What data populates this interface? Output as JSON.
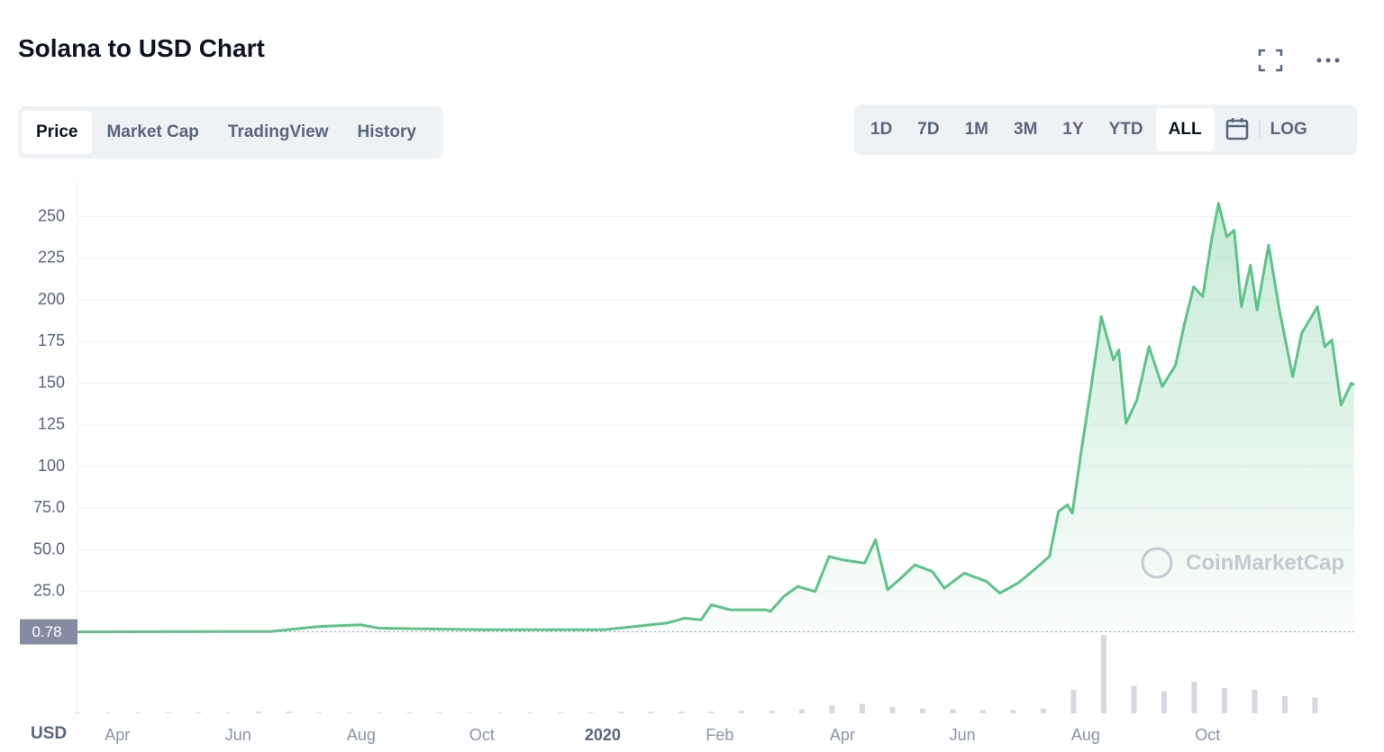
{
  "title": "Solana to USD Chart",
  "tabs": [
    "Price",
    "Market Cap",
    "TradingView",
    "History"
  ],
  "ranges": [
    "1D",
    "7D",
    "1M",
    "3M",
    "1Y",
    "YTD",
    "ALL"
  ],
  "log_button": "LOG",
  "currency": "USD",
  "watermark": "CoinMarketCap",
  "chart_data": {
    "type": "line",
    "color": "#5cc489",
    "area": true,
    "grid": true,
    "xlim": [
      0,
      21.15
    ],
    "ylim": [
      0,
      272
    ],
    "yticks": [
      {
        "value": 25,
        "label": "25.0"
      },
      {
        "value": 50,
        "label": "50.0"
      },
      {
        "value": 75,
        "label": "75.0"
      },
      100,
      125,
      150,
      175,
      200,
      225,
      250
    ],
    "xticks": [
      {
        "value": 0.66,
        "label": "Apr"
      },
      {
        "value": 2.66,
        "label": "Jun"
      },
      {
        "value": 4.7,
        "label": "Aug"
      },
      {
        "value": 6.7,
        "label": "Oct"
      },
      {
        "value": 8.7,
        "label": "2020"
      },
      {
        "value": 10.64,
        "label": "Feb"
      },
      {
        "value": 12.67,
        "label": "Apr"
      },
      {
        "value": 14.66,
        "label": "Jun"
      },
      {
        "value": 16.7,
        "label": "Aug"
      },
      {
        "value": 18.72,
        "label": "Oct"
      }
    ],
    "start_price": 0.78,
    "x": [
      0,
      3.19,
      4.0,
      4.69,
      5.0,
      6.78,
      8.72,
      9.76,
      10.06,
      10.33,
      10.5,
      10.81,
      11.4,
      11.48,
      11.7,
      11.93,
      12.22,
      12.45,
      12.67,
      13.04,
      13.22,
      13.42,
      13.64,
      13.87,
      14.16,
      14.36,
      14.69,
      15.06,
      15.28,
      15.58,
      15.88,
      16.1,
      16.25,
      16.4,
      16.48,
      16.63,
      16.78,
      16.96,
      17.16,
      17.25,
      17.37,
      17.55,
      17.75,
      17.97,
      18.19,
      18.34,
      18.49,
      18.64,
      18.79,
      18.9,
      19.04,
      19.16,
      19.28,
      19.43,
      19.54,
      19.73,
      19.91,
      20.13,
      20.28,
      20.54,
      20.66,
      20.78,
      20.93,
      21.1,
      21.15
    ],
    "values": [
      0.78,
      1,
      4,
      5,
      3,
      2,
      2,
      6,
      9,
      8,
      17,
      14,
      14,
      13,
      22,
      28,
      25,
      46,
      44,
      42,
      56,
      26,
      33,
      41,
      37,
      27,
      36,
      31,
      24,
      30,
      39,
      46,
      73,
      77,
      72,
      110,
      145,
      190,
      164,
      170,
      126,
      140,
      172,
      148,
      161,
      186,
      208,
      202,
      237,
      258,
      238,
      242,
      196,
      221,
      194,
      233,
      194,
      154,
      180,
      196,
      172,
      176,
      137,
      150,
      149
    ],
    "volume": {
      "color": "#d5d9e0",
      "vlim": [
        0,
        100
      ],
      "x": [
        0,
        0.5,
        1,
        1.5,
        2,
        2.5,
        3,
        3.5,
        4,
        4.5,
        5,
        5.5,
        6,
        6.5,
        7,
        7.5,
        8,
        8.5,
        9,
        9.5,
        10,
        10.5,
        11,
        11.5,
        12,
        12.5,
        13,
        13.5,
        14,
        14.5,
        15,
        15.5,
        16,
        16.5,
        17,
        17.5,
        18,
        18.5,
        19,
        19.5,
        20,
        20.5
      ],
      "values": [
        1,
        1,
        1,
        1,
        1,
        1,
        2,
        2,
        1,
        1,
        1,
        1,
        1,
        1,
        1,
        1,
        1,
        1,
        2,
        2,
        2,
        2,
        3,
        3,
        5,
        10,
        12,
        8,
        6,
        5,
        4,
        4,
        6,
        30,
        100,
        35,
        28,
        40,
        32,
        30,
        22,
        20
      ]
    }
  }
}
